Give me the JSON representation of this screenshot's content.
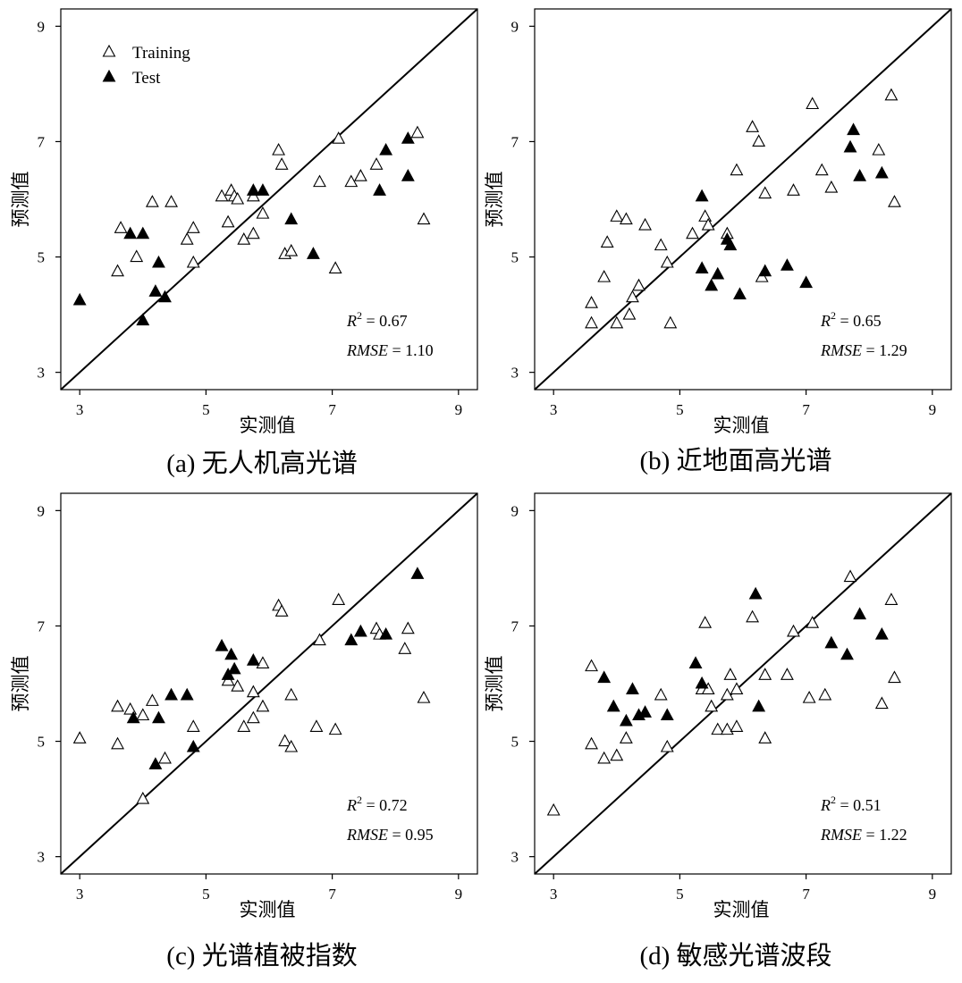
{
  "legend": {
    "training": "Training",
    "test": "Test"
  },
  "chart_data": [
    {
      "type": "scatter",
      "caption": "(a) 无人机高光谱",
      "xlabel": "实测值",
      "ylabel": "预测值",
      "xlim": [
        2.7,
        9.3
      ],
      "ylim": [
        2.7,
        9.3
      ],
      "xticks": [
        3,
        5,
        7,
        9
      ],
      "yticks": [
        3,
        5,
        7,
        9
      ],
      "r2_label": "= 0.67",
      "rmse_label": "= 1.10",
      "reference_line": "1:1",
      "series": [
        {
          "name": "Training",
          "points": [
            [
              3.6,
              4.75
            ],
            [
              3.65,
              5.5
            ],
            [
              3.9,
              5.0
            ],
            [
              4.15,
              5.95
            ],
            [
              4.45,
              5.95
            ],
            [
              4.7,
              5.3
            ],
            [
              4.8,
              5.5
            ],
            [
              4.8,
              4.9
            ],
            [
              5.25,
              6.05
            ],
            [
              5.35,
              5.6
            ],
            [
              5.4,
              6.15
            ],
            [
              5.45,
              6.05
            ],
            [
              5.5,
              6.0
            ],
            [
              5.6,
              5.3
            ],
            [
              5.75,
              5.4
            ],
            [
              5.75,
              6.05
            ],
            [
              5.9,
              5.75
            ],
            [
              6.15,
              6.85
            ],
            [
              6.2,
              6.6
            ],
            [
              6.25,
              5.05
            ],
            [
              6.35,
              5.1
            ],
            [
              6.8,
              6.3
            ],
            [
              7.05,
              4.8
            ],
            [
              7.1,
              7.05
            ],
            [
              7.3,
              6.3
            ],
            [
              7.45,
              6.4
            ],
            [
              7.7,
              6.6
            ],
            [
              8.35,
              7.15
            ],
            [
              8.45,
              5.65
            ]
          ]
        },
        {
          "name": "Test",
          "points": [
            [
              3.0,
              4.25
            ],
            [
              3.8,
              5.4
            ],
            [
              4.0,
              5.4
            ],
            [
              4.0,
              3.9
            ],
            [
              4.2,
              4.4
            ],
            [
              4.25,
              4.9
            ],
            [
              4.35,
              4.3
            ],
            [
              5.75,
              6.15
            ],
            [
              5.9,
              6.15
            ],
            [
              6.35,
              5.65
            ],
            [
              6.7,
              5.05
            ],
            [
              7.75,
              6.15
            ],
            [
              7.85,
              6.85
            ],
            [
              8.2,
              6.4
            ],
            [
              8.2,
              7.05
            ]
          ]
        }
      ]
    },
    {
      "type": "scatter",
      "caption": "(b) 近地面高光谱",
      "xlabel": "实测值",
      "ylabel": "预测值",
      "xlim": [
        2.7,
        9.3
      ],
      "ylim": [
        2.7,
        9.3
      ],
      "xticks": [
        3,
        5,
        7,
        9
      ],
      "yticks": [
        3,
        5,
        7,
        9
      ],
      "r2_label": "= 0.65",
      "rmse_label": "= 1.29",
      "reference_line": "1:1",
      "series": [
        {
          "name": "Training",
          "points": [
            [
              3.6,
              4.2
            ],
            [
              3.6,
              3.85
            ],
            [
              3.8,
              4.65
            ],
            [
              3.85,
              5.25
            ],
            [
              4.0,
              5.7
            ],
            [
              4.0,
              3.85
            ],
            [
              4.15,
              5.65
            ],
            [
              4.2,
              4.0
            ],
            [
              4.25,
              4.3
            ],
            [
              4.35,
              4.5
            ],
            [
              4.45,
              5.55
            ],
            [
              4.7,
              5.2
            ],
            [
              4.8,
              4.9
            ],
            [
              4.85,
              3.85
            ],
            [
              5.2,
              5.4
            ],
            [
              5.4,
              5.7
            ],
            [
              5.45,
              5.55
            ],
            [
              5.75,
              5.4
            ],
            [
              5.9,
              6.5
            ],
            [
              6.15,
              7.25
            ],
            [
              6.25,
              7.0
            ],
            [
              6.3,
              4.65
            ],
            [
              6.35,
              6.1
            ],
            [
              6.8,
              6.15
            ],
            [
              7.1,
              7.65
            ],
            [
              7.25,
              6.5
            ],
            [
              7.4,
              6.2
            ],
            [
              8.15,
              6.85
            ],
            [
              8.35,
              7.8
            ],
            [
              8.4,
              5.95
            ]
          ]
        },
        {
          "name": "Test",
          "points": [
            [
              5.35,
              6.05
            ],
            [
              5.35,
              4.8
            ],
            [
              5.5,
              4.5
            ],
            [
              5.6,
              4.7
            ],
            [
              5.75,
              5.3
            ],
            [
              5.8,
              5.2
            ],
            [
              5.95,
              4.35
            ],
            [
              6.35,
              4.75
            ],
            [
              6.7,
              4.85
            ],
            [
              7.0,
              4.55
            ],
            [
              7.7,
              6.9
            ],
            [
              7.75,
              7.2
            ],
            [
              7.85,
              6.4
            ],
            [
              8.2,
              6.45
            ]
          ]
        }
      ]
    },
    {
      "type": "scatter",
      "caption": "(c) 光谱植被指数",
      "xlabel": "实测值",
      "ylabel": "预测值",
      "xlim": [
        2.7,
        9.3
      ],
      "ylim": [
        2.7,
        9.3
      ],
      "xticks": [
        3,
        5,
        7,
        9
      ],
      "yticks": [
        3,
        5,
        7,
        9
      ],
      "r2_label": "= 0.72",
      "rmse_label": "= 0.95",
      "reference_line": "1:1",
      "series": [
        {
          "name": "Training",
          "points": [
            [
              3.0,
              5.05
            ],
            [
              3.6,
              4.95
            ],
            [
              3.6,
              5.6
            ],
            [
              3.8,
              5.55
            ],
            [
              4.0,
              5.45
            ],
            [
              4.0,
              4.0
            ],
            [
              4.15,
              5.7
            ],
            [
              4.35,
              4.7
            ],
            [
              4.8,
              5.25
            ],
            [
              5.35,
              6.05
            ],
            [
              5.5,
              5.95
            ],
            [
              5.6,
              5.25
            ],
            [
              5.75,
              5.85
            ],
            [
              5.75,
              5.4
            ],
            [
              5.9,
              5.6
            ],
            [
              5.9,
              6.35
            ],
            [
              6.15,
              7.35
            ],
            [
              6.2,
              7.25
            ],
            [
              6.25,
              5.0
            ],
            [
              6.35,
              4.9
            ],
            [
              6.35,
              5.8
            ],
            [
              6.75,
              5.25
            ],
            [
              6.8,
              6.75
            ],
            [
              7.05,
              5.2
            ],
            [
              7.1,
              7.45
            ],
            [
              7.7,
              6.95
            ],
            [
              7.75,
              6.85
            ],
            [
              8.15,
              6.6
            ],
            [
              8.2,
              6.95
            ],
            [
              8.45,
              5.75
            ]
          ]
        },
        {
          "name": "Test",
          "points": [
            [
              3.85,
              5.4
            ],
            [
              4.2,
              4.6
            ],
            [
              4.25,
              5.4
            ],
            [
              4.45,
              5.8
            ],
            [
              4.7,
              5.8
            ],
            [
              4.8,
              4.9
            ],
            [
              5.25,
              6.65
            ],
            [
              5.35,
              6.15
            ],
            [
              5.4,
              6.5
            ],
            [
              5.45,
              6.25
            ],
            [
              5.75,
              6.4
            ],
            [
              7.3,
              6.75
            ],
            [
              7.45,
              6.9
            ],
            [
              7.85,
              6.85
            ],
            [
              8.35,
              7.9
            ]
          ]
        }
      ]
    },
    {
      "type": "scatter",
      "caption": "(d) 敏感光谱波段",
      "xlabel": "实测值",
      "ylabel": "预测值",
      "xlim": [
        2.7,
        9.3
      ],
      "ylim": [
        2.7,
        9.3
      ],
      "xticks": [
        3,
        5,
        7,
        9
      ],
      "yticks": [
        3,
        5,
        7,
        9
      ],
      "r2_label": "= 0.51",
      "rmse_label": "= 1.22",
      "reference_line": "1:1",
      "series": [
        {
          "name": "Training",
          "points": [
            [
              3.0,
              3.8
            ],
            [
              3.6,
              6.3
            ],
            [
              3.6,
              4.95
            ],
            [
              3.8,
              4.7
            ],
            [
              4.0,
              4.75
            ],
            [
              4.15,
              5.05
            ],
            [
              4.7,
              5.8
            ],
            [
              4.8,
              4.9
            ],
            [
              5.35,
              5.9
            ],
            [
              5.4,
              7.05
            ],
            [
              5.45,
              5.9
            ],
            [
              5.5,
              5.6
            ],
            [
              5.6,
              5.2
            ],
            [
              5.75,
              5.2
            ],
            [
              5.75,
              5.8
            ],
            [
              5.8,
              6.15
            ],
            [
              5.9,
              5.25
            ],
            [
              5.9,
              5.9
            ],
            [
              6.15,
              7.15
            ],
            [
              6.35,
              6.15
            ],
            [
              6.35,
              5.05
            ],
            [
              6.7,
              6.15
            ],
            [
              6.8,
              6.9
            ],
            [
              7.05,
              5.75
            ],
            [
              7.1,
              7.05
            ],
            [
              7.3,
              5.8
            ],
            [
              7.7,
              7.85
            ],
            [
              8.2,
              5.65
            ],
            [
              8.35,
              7.45
            ],
            [
              8.4,
              6.1
            ]
          ]
        },
        {
          "name": "Test",
          "points": [
            [
              3.8,
              6.1
            ],
            [
              3.95,
              5.6
            ],
            [
              4.15,
              5.35
            ],
            [
              4.25,
              5.9
            ],
            [
              4.35,
              5.45
            ],
            [
              4.45,
              5.5
            ],
            [
              4.8,
              5.45
            ],
            [
              5.25,
              6.35
            ],
            [
              5.35,
              6.0
            ],
            [
              6.2,
              7.55
            ],
            [
              6.25,
              5.6
            ],
            [
              7.4,
              6.7
            ],
            [
              7.65,
              6.5
            ],
            [
              7.85,
              7.2
            ],
            [
              8.2,
              6.85
            ]
          ]
        }
      ]
    }
  ]
}
